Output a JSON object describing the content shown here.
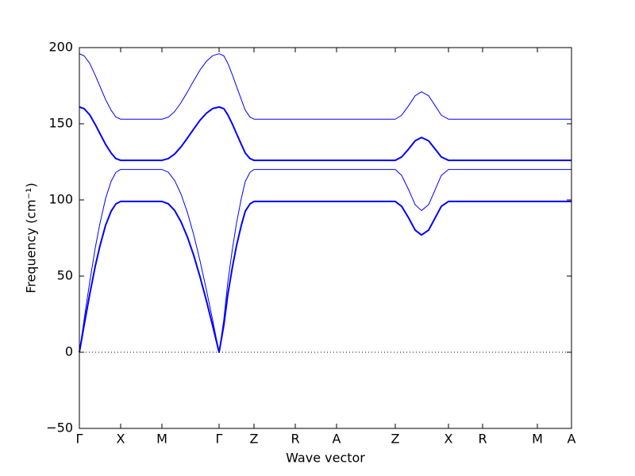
{
  "chart_data": {
    "type": "line",
    "xlabel": "Wave vector",
    "ylabel": "Frequency (cm⁻¹)",
    "x": [
      0,
      6,
      13,
      20,
      26,
      33,
      40,
      46,
      52,
      104,
      112,
      120,
      128,
      136,
      144,
      152,
      160,
      168,
      176,
      182,
      187,
      193,
      198,
      204,
      209,
      215,
      220,
      272,
      324,
      398,
      406,
      415,
      423,
      431,
      440,
      448,
      456,
      465,
      508,
      577,
      620
    ],
    "xlim": [
      0,
      620
    ],
    "xticks": [
      {
        "value": 0,
        "label": "Γ"
      },
      {
        "value": 52,
        "label": "X"
      },
      {
        "value": 104,
        "label": "M"
      },
      {
        "value": 176,
        "label": "Γ"
      },
      {
        "value": 220,
        "label": "Z"
      },
      {
        "value": 272,
        "label": "R"
      },
      {
        "value": 324,
        "label": "A"
      },
      {
        "value": 398,
        "label": "Z"
      },
      {
        "value": 465,
        "label": "X"
      },
      {
        "value": 508,
        "label": "R"
      },
      {
        "value": 577,
        "label": "M"
      },
      {
        "value": 620,
        "label": "A"
      }
    ],
    "ylim": [
      -50,
      200
    ],
    "yticks": [
      {
        "value": -50,
        "label": "−50"
      },
      0,
      50,
      100,
      150,
      200
    ],
    "zero_line": true,
    "series": [
      {
        "color": "#0000ff",
        "linewidth": 1,
        "values": [
          196,
          194.6,
          189.7,
          181.8,
          174.5,
          165.9,
          158.9,
          154.4,
          153,
          153,
          154.3,
          158,
          163.8,
          170.8,
          178.2,
          185.3,
          191,
          194.7,
          196,
          194.6,
          189.7,
          181.8,
          174.5,
          165.9,
          158.9,
          154.4,
          153,
          153,
          153,
          153,
          155.6,
          162,
          168.4,
          171,
          168.4,
          162,
          155.6,
          153,
          153,
          153,
          153
        ]
      },
      {
        "color": "#0000ff",
        "linewidth": 2,
        "values": [
          161,
          159.9,
          155.9,
          149.5,
          143.5,
          136.5,
          130.8,
          127.1,
          126,
          126,
          127.1,
          130.1,
          134.8,
          140.5,
          146.5,
          152.3,
          156.9,
          160,
          161,
          159.9,
          155.9,
          149.5,
          143.5,
          136.5,
          130.8,
          127.1,
          126,
          126,
          126,
          126,
          128.2,
          133.5,
          138.8,
          141,
          138.8,
          133.5,
          128.2,
          126,
          126,
          126,
          126
        ]
      },
      {
        "color": "#0000ff",
        "linewidth": 1,
        "values": [
          0,
          21.6,
          46,
          68.5,
          84.8,
          100.9,
          112.2,
          118.1,
          120,
          120,
          118.2,
          112.8,
          103.9,
          91.9,
          77.2,
          60,
          41,
          20.9,
          0,
          21.6,
          46,
          68.5,
          84.8,
          100.9,
          112.2,
          118.1,
          120,
          120,
          120,
          120,
          116.1,
          106.5,
          96.9,
          93,
          96.9,
          106.5,
          116.1,
          120,
          120,
          120,
          120
        ]
      },
      {
        "color": "#0000ff",
        "linewidth": 2,
        "values": [
          0,
          17.8,
          37.9,
          56.5,
          70,
          83.3,
          92.6,
          97.4,
          99,
          99,
          97.5,
          93.1,
          85.7,
          75.8,
          63.7,
          49.5,
          33.9,
          17.2,
          0,
          17.8,
          37.9,
          56.5,
          70,
          83.3,
          92.6,
          97.4,
          99,
          99,
          99,
          99,
          95.8,
          88,
          80.2,
          77,
          80.2,
          88,
          95.8,
          99,
          99,
          99,
          99
        ]
      }
    ]
  }
}
